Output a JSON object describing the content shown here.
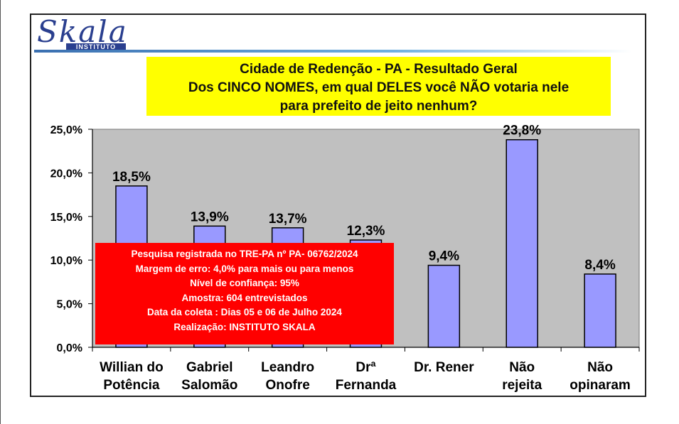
{
  "logo": {
    "name": "Skala",
    "subtitle": "INSTITUTO"
  },
  "title_lines": [
    "Cidade de Redenção - PA - Resultado Geral",
    "Dos CINCO NOMES, em qual DELES você NÃO votaria nele",
    "para prefeito de jeito nenhum?"
  ],
  "info_lines": [
    "Pesquisa registrada no TRE-PA nº PA- 06762/2024",
    "Margem de erro: 4,0% para mais ou para menos",
    "Nível de confiança: 95%",
    "Amostra: 604 entrevistados",
    "Data da coleta : Dias 05 e 06 de Julho 2024",
    "Realização: INSTITUTO SKALA"
  ],
  "colors": {
    "bar": "#9999ff",
    "plot_bg": "#c0c0c0",
    "title_bg": "#ffff00",
    "info_bg": "#ff0000",
    "logo": "#2a3f8f"
  },
  "chart_data": {
    "type": "bar",
    "categories": [
      [
        "Willian do",
        "Potência"
      ],
      [
        "Gabriel",
        "Salomão"
      ],
      [
        "Leandro",
        "Onofre"
      ],
      [
        "Drª",
        "Fernanda"
      ],
      [
        "Dr. Rener"
      ],
      [
        "Não",
        "rejeita"
      ],
      [
        "Não",
        "opinaram"
      ]
    ],
    "values": [
      18.5,
      13.9,
      13.7,
      12.3,
      9.4,
      23.8,
      8.4
    ],
    "value_labels": [
      "18,5%",
      "13,9%",
      "13,7%",
      "12,3%",
      "9,4%",
      "23,8%",
      "8,4%"
    ],
    "y_ticks": [
      0,
      5,
      10,
      15,
      20,
      25
    ],
    "y_tick_labels": [
      "0,0%",
      "5,0%",
      "10,0%",
      "15,0%",
      "20,0%",
      "25,0%"
    ],
    "ylim": [
      0,
      25
    ],
    "xlabel": "",
    "ylabel": "",
    "grid": false,
    "legend": "none"
  }
}
